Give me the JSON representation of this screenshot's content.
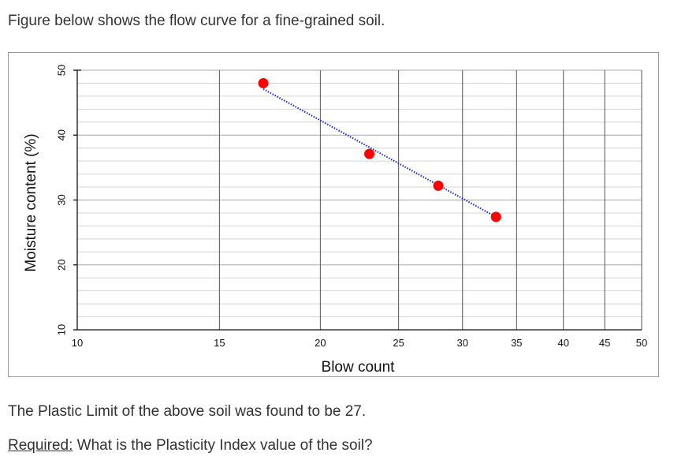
{
  "intro_text": "Figure below shows the flow curve for a fine-grained soil.",
  "chart_data": {
    "type": "scatter",
    "title": "",
    "xlabel": "Blow count",
    "ylabel": "Moisture content (%)",
    "x_scale": "log",
    "xlim": [
      10,
      50
    ],
    "ylim": [
      10,
      50
    ],
    "x_ticks": [
      10,
      15,
      20,
      25,
      30,
      35,
      40,
      45,
      50
    ],
    "y_ticks": [
      10,
      20,
      30,
      40,
      50
    ],
    "x_tick_labels": [
      "10",
      "15",
      "20",
      "25",
      "30",
      "35",
      "40",
      "45",
      "50"
    ],
    "y_tick_labels": [
      "10",
      "20",
      "30",
      "40",
      "50"
    ],
    "grid": true,
    "legend": "none",
    "points": [
      {
        "x": 17,
        "y": 48.0
      },
      {
        "x": 23,
        "y": 37.1
      },
      {
        "x": 28,
        "y": 32.2
      },
      {
        "x": 33,
        "y": 27.4
      }
    ],
    "trendline": {
      "x": [
        17,
        33
      ],
      "y": [
        47.1,
        27.4
      ],
      "style": "dotted"
    },
    "point_color": "#ff0000",
    "trendline_color": "#2233cc"
  },
  "statement_text": "The Plastic Limit of the above soil was found to be 27.",
  "question": {
    "required_label": "Required:",
    "text": " What is the Plasticity Index value of the soil?"
  }
}
